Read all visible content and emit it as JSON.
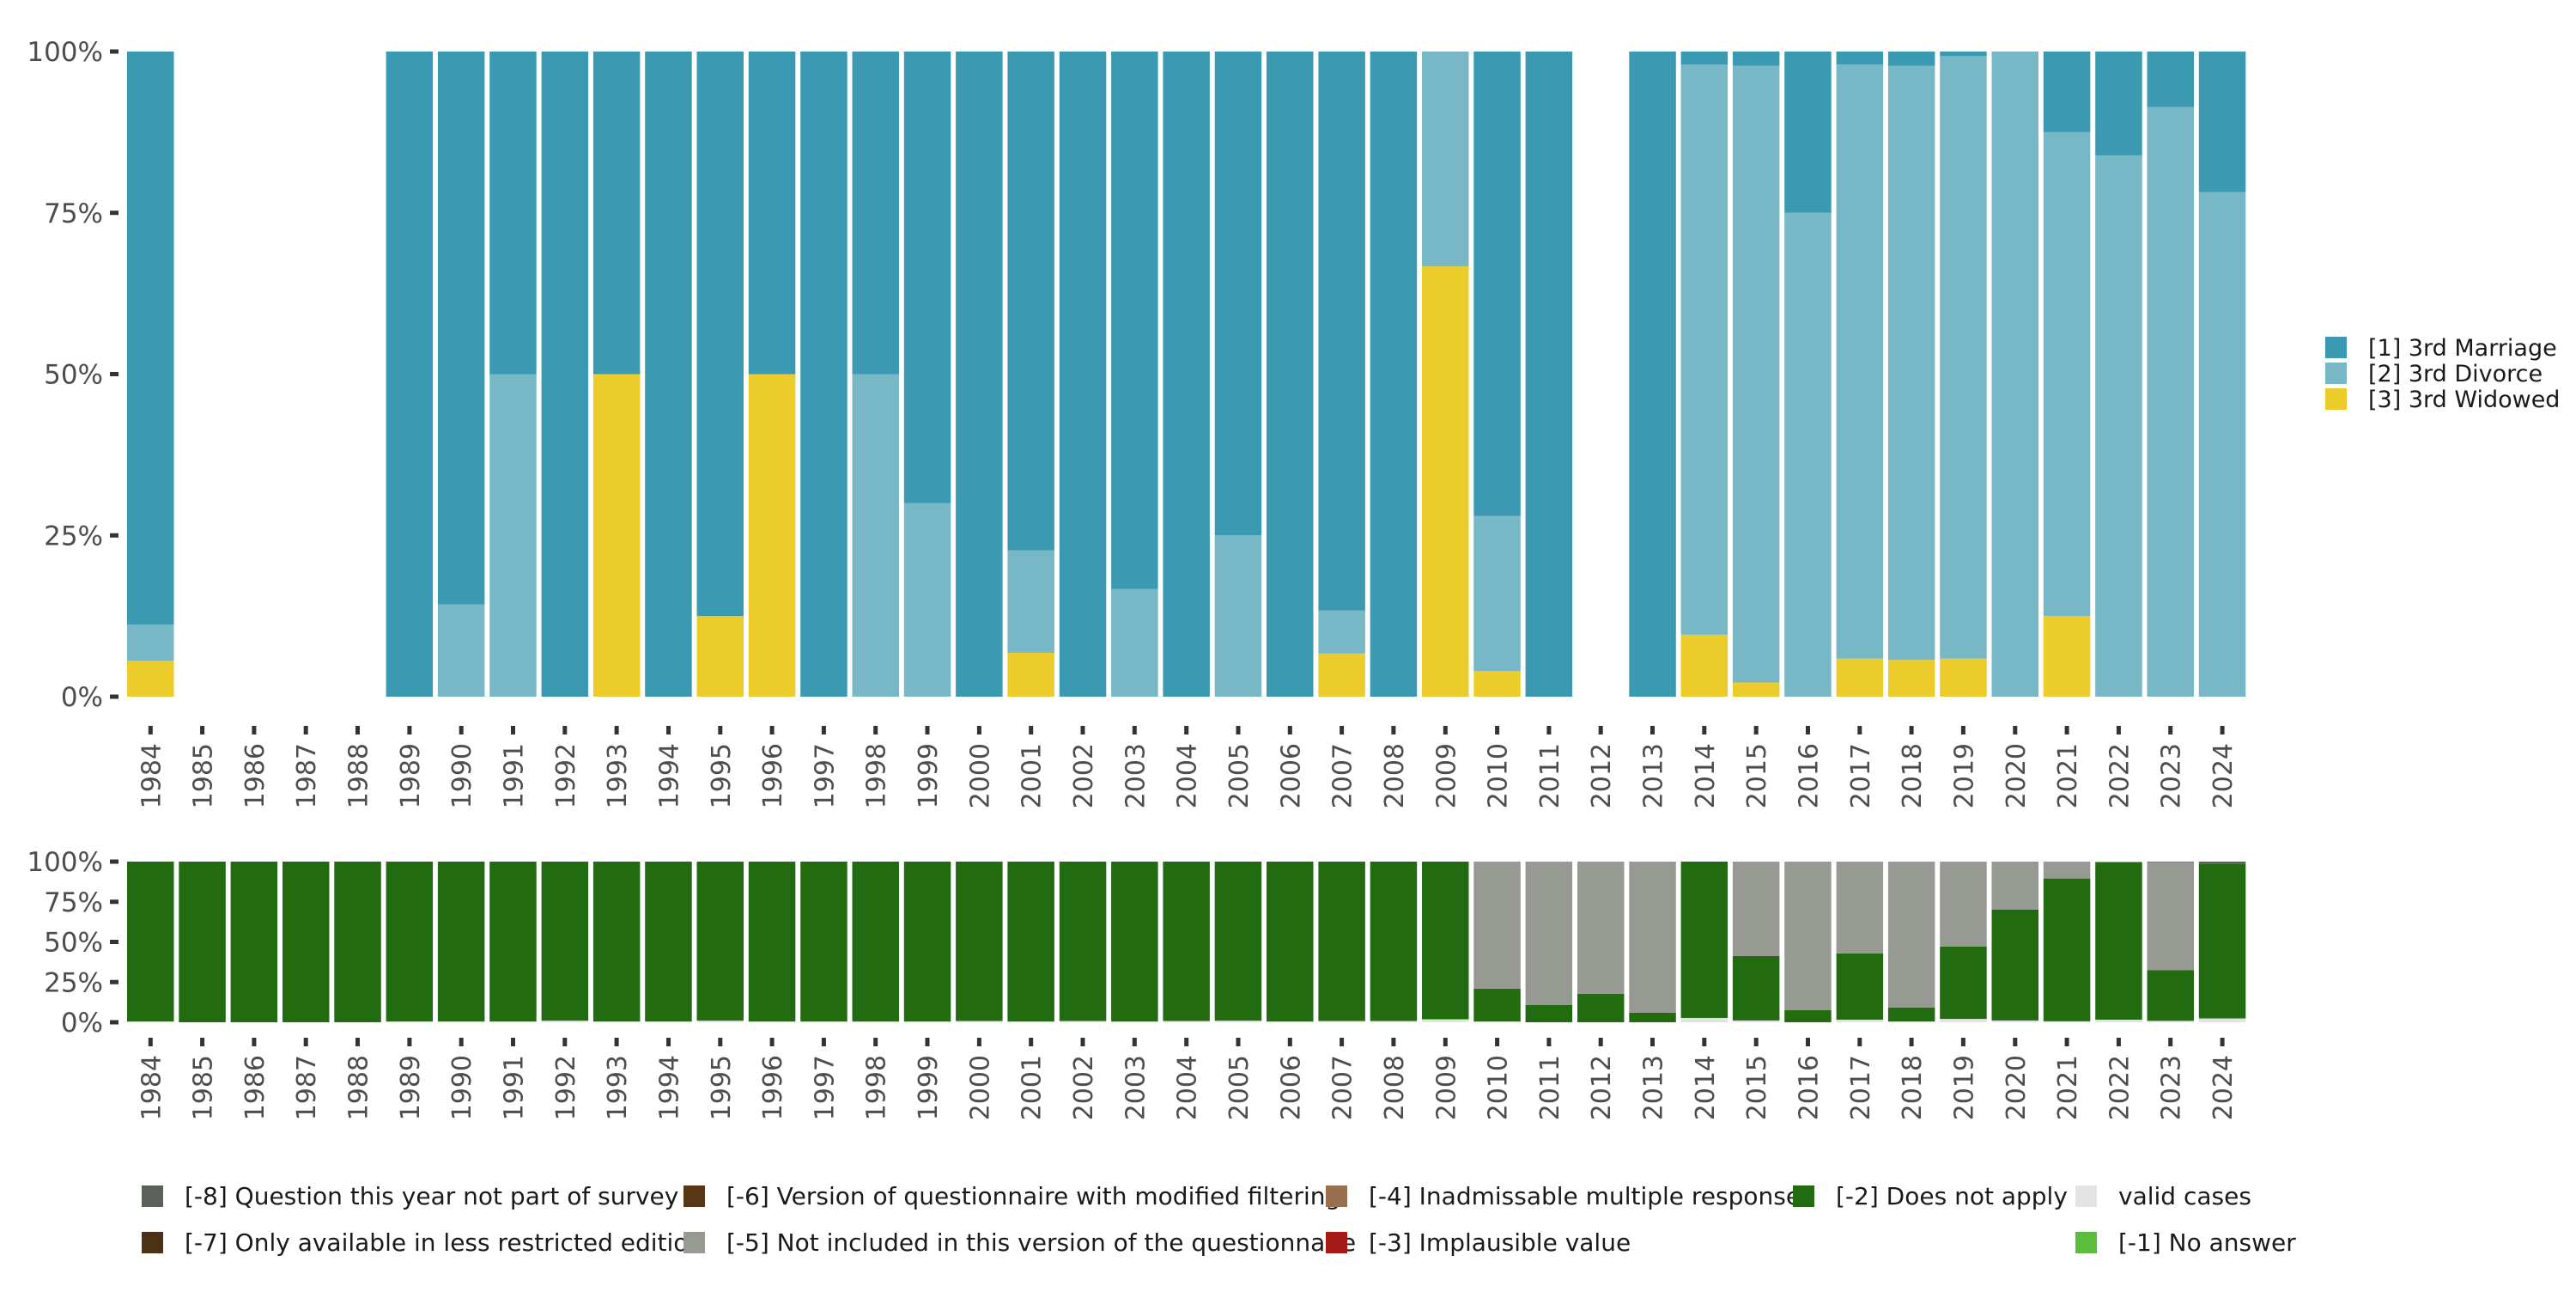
{
  "chart_data": [
    {
      "type": "bar",
      "stacked": true,
      "normalized": true,
      "title": "",
      "xlabel": "",
      "ylabel": "",
      "ylim": [
        0,
        100
      ],
      "yticks": [
        "0%",
        "25%",
        "50%",
        "75%",
        "100%"
      ],
      "grid": false,
      "legend_position": "right",
      "categories": [
        "1984",
        "1985",
        "1986",
        "1987",
        "1988",
        "1989",
        "1990",
        "1991",
        "1992",
        "1993",
        "1994",
        "1995",
        "1996",
        "1997",
        "1998",
        "1999",
        "2000",
        "2001",
        "2002",
        "2003",
        "2004",
        "2005",
        "2006",
        "2007",
        "2008",
        "2009",
        "2010",
        "2011",
        "2012",
        "2013",
        "2014",
        "2015",
        "2016",
        "2017",
        "2018",
        "2019",
        "2020",
        "2021",
        "2022",
        "2023",
        "2024"
      ],
      "series": [
        {
          "name": "[3] 3rd Widowed",
          "color": "#EBCC2A",
          "values": [
            5.6,
            0,
            0,
            0,
            0,
            0,
            0,
            0,
            0,
            50,
            0,
            12.5,
            50,
            0,
            0,
            0,
            0,
            6.8,
            0,
            0,
            0,
            0,
            0,
            6.7,
            0,
            66.7,
            4,
            0,
            0,
            0,
            9.6,
            2.2,
            0,
            5.9,
            5.7,
            5.9,
            0,
            12.5,
            0,
            0,
            0
          ]
        },
        {
          "name": "[2] 3rd Divorce",
          "color": "#78B7C5",
          "values": [
            5.6,
            0,
            0,
            0,
            0,
            0,
            14.3,
            50,
            0,
            0,
            0,
            0,
            0,
            0,
            50,
            30,
            0,
            15.9,
            0,
            16.7,
            0,
            25,
            0,
            6.7,
            0,
            33.3,
            24,
            0,
            0,
            0,
            88.4,
            95.6,
            75,
            92.1,
            92.1,
            93.4,
            100,
            75,
            83.9,
            91.4,
            78.2
          ]
        },
        {
          "name": "[1] 3rd Marriage",
          "color": "#3B9AB2",
          "values": [
            88.9,
            0,
            0,
            0,
            0,
            100,
            85.7,
            50,
            100,
            50,
            100,
            87.5,
            50,
            100,
            50,
            70,
            100,
            77.3,
            100,
            83.3,
            100,
            75,
            100,
            86.7,
            100,
            0,
            72,
            100,
            0,
            100,
            2.0,
            2.2,
            25,
            2.0,
            2.2,
            0.7,
            0,
            12.5,
            16.1,
            8.6,
            21.8
          ]
        }
      ]
    },
    {
      "type": "bar",
      "stacked": true,
      "normalized": true,
      "title": "",
      "xlabel": "",
      "ylabel": "",
      "ylim": [
        0,
        100
      ],
      "yticks": [
        "0%",
        "25%",
        "50%",
        "75%",
        "100%"
      ],
      "grid": false,
      "legend_position": "bottom",
      "categories": [
        "1984",
        "1985",
        "1986",
        "1987",
        "1988",
        "1989",
        "1990",
        "1991",
        "1992",
        "1993",
        "1994",
        "1995",
        "1996",
        "1997",
        "1998",
        "1999",
        "2000",
        "2001",
        "2002",
        "2003",
        "2004",
        "2005",
        "2006",
        "2007",
        "2008",
        "2009",
        "2010",
        "2011",
        "2012",
        "2013",
        "2014",
        "2015",
        "2016",
        "2017",
        "2018",
        "2019",
        "2020",
        "2021",
        "2022",
        "2023",
        "2024"
      ],
      "series": [
        {
          "name": "valid cases",
          "color": "#E1E4E0",
          "values": [
            0.5,
            0,
            0,
            0,
            0,
            0.5,
            0.5,
            0.5,
            1.0,
            0.5,
            0.5,
            1.0,
            0.5,
            0.5,
            0.5,
            0.5,
            0.8,
            0.5,
            0.8,
            0.5,
            0.8,
            1.0,
            0.5,
            0.8,
            0.8,
            1.6,
            0.5,
            0,
            0,
            0,
            2.7,
            1.1,
            0,
            1.6,
            0.5,
            2.1,
            1.1,
            0.6,
            1.6,
            0.9,
            2.1
          ]
        },
        {
          "name": "[-1] No answer",
          "color": "#5BBC3D",
          "values": [
            0,
            0,
            0,
            0,
            0,
            0,
            0,
            0,
            0,
            0,
            0,
            0,
            0,
            0,
            0,
            0,
            0,
            0,
            0,
            0,
            0,
            0,
            0,
            0,
            0,
            0.5,
            0,
            0,
            0,
            0,
            0,
            0,
            0,
            0,
            0,
            0,
            0,
            0,
            0,
            0,
            0.6
          ]
        },
        {
          "name": "[-2] Does not apply",
          "color": "#226B11",
          "values": [
            99.5,
            100,
            100,
            100,
            100,
            99.5,
            99.5,
            99.5,
            99.0,
            99.5,
            99.5,
            99.0,
            99.5,
            99.5,
            99.5,
            99.5,
            99.2,
            99.5,
            99.2,
            99.5,
            99.2,
            99.0,
            99.5,
            99.2,
            99.2,
            97.9,
            20.4,
            10.7,
            17.7,
            5.9,
            97.3,
            40.1,
            7.5,
            41.3,
            8.6,
            45.0,
            69.1,
            88.9,
            97.9,
            31.6,
            95.9
          ]
        },
        {
          "name": "[-3] Implausible value",
          "color": "#A51A17",
          "values": [
            0,
            0,
            0,
            0,
            0,
            0,
            0,
            0,
            0,
            0,
            0,
            0,
            0,
            0,
            0,
            0,
            0,
            0,
            0,
            0,
            0,
            0,
            0,
            0,
            0,
            0,
            0,
            0,
            0,
            0,
            0,
            0,
            0,
            0,
            0,
            0,
            0,
            0,
            0,
            0,
            0
          ]
        },
        {
          "name": "[-4] Inadmissable multiple response",
          "color": "#98704F",
          "values": [
            0,
            0,
            0,
            0,
            0,
            0,
            0,
            0,
            0,
            0,
            0,
            0,
            0,
            0,
            0,
            0,
            0,
            0,
            0,
            0,
            0,
            0,
            0,
            0,
            0,
            0,
            0,
            0,
            0,
            0,
            0,
            0,
            0,
            0,
            0,
            0,
            0,
            0,
            0,
            0,
            0
          ]
        },
        {
          "name": "[-5] Not included in this version of the questionnaire",
          "color": "#979A93",
          "values": [
            0,
            0,
            0,
            0,
            0,
            0,
            0,
            0,
            0,
            0,
            0,
            0,
            0,
            0,
            0,
            0,
            0,
            0,
            0,
            0,
            0,
            0,
            0,
            0,
            0,
            0,
            79.1,
            89.3,
            82.3,
            94.1,
            0,
            58.8,
            92.5,
            57.1,
            90.9,
            52.9,
            29.8,
            10.5,
            0.5,
            67.1,
            0
          ]
        },
        {
          "name": "[-6] Version of questionnaire with modified filtering",
          "color": "#583716",
          "values": [
            0,
            0,
            0,
            0,
            0,
            0,
            0,
            0,
            0,
            0,
            0,
            0,
            0,
            0,
            0,
            0,
            0,
            0,
            0,
            0,
            0,
            0,
            0,
            0,
            0,
            0,
            0,
            0,
            0,
            0,
            0,
            0,
            0,
            0,
            0,
            0,
            0,
            0,
            0,
            0,
            0
          ]
        },
        {
          "name": "[-7] Only available in less restricted edition",
          "color": "#4D3115",
          "values": [
            0,
            0,
            0,
            0,
            0,
            0,
            0,
            0,
            0,
            0,
            0,
            0,
            0,
            0,
            0,
            0,
            0,
            0,
            0,
            0,
            0,
            0,
            0,
            0,
            0,
            0,
            0,
            0,
            0,
            0,
            0,
            0,
            0,
            0,
            0,
            0,
            0,
            0,
            0,
            0,
            0
          ]
        },
        {
          "name": "[-8] Question this year not part of survey",
          "color": "#5C605B",
          "values": [
            0,
            0,
            0,
            0,
            0,
            0,
            0,
            0,
            0,
            0,
            0,
            0,
            0,
            0,
            0,
            0,
            0,
            0,
            0,
            0,
            0,
            0,
            0,
            0,
            0,
            0,
            0,
            0,
            0,
            0,
            0,
            0,
            0,
            0,
            0,
            0,
            0,
            0,
            0,
            0.4,
            1.4
          ]
        }
      ]
    }
  ],
  "top_legend": {
    "items": [
      {
        "label": "[1] 3rd Marriage",
        "color": "#3B9AB2"
      },
      {
        "label": "[2] 3rd Divorce",
        "color": "#78B7C5"
      },
      {
        "label": "[3] 3rd Widowed",
        "color": "#EBCC2A"
      }
    ]
  },
  "bottom_legend": {
    "rows": [
      [
        {
          "label": "[-8] Question this year not part of survey",
          "color": "#5C605B"
        },
        {
          "label": "[-6] Version of questionnaire with modified filtering",
          "color": "#583716"
        },
        {
          "label": "[-4] Inadmissable multiple response",
          "color": "#98704F"
        },
        {
          "label": "[-2] Does not apply",
          "color": "#226B11"
        },
        {
          "label": "valid cases",
          "color": "#E1E4E0"
        }
      ],
      [
        {
          "label": "[-7] Only available in less restricted edition",
          "color": "#4D3115"
        },
        {
          "label": "[-5] Not included in this version of the questionnaire",
          "color": "#979A93"
        },
        {
          "label": "[-3] Implausible value",
          "color": "#A51A17"
        },
        null,
        {
          "label": "[-1] No answer",
          "color": "#5BBC3D"
        }
      ]
    ]
  }
}
